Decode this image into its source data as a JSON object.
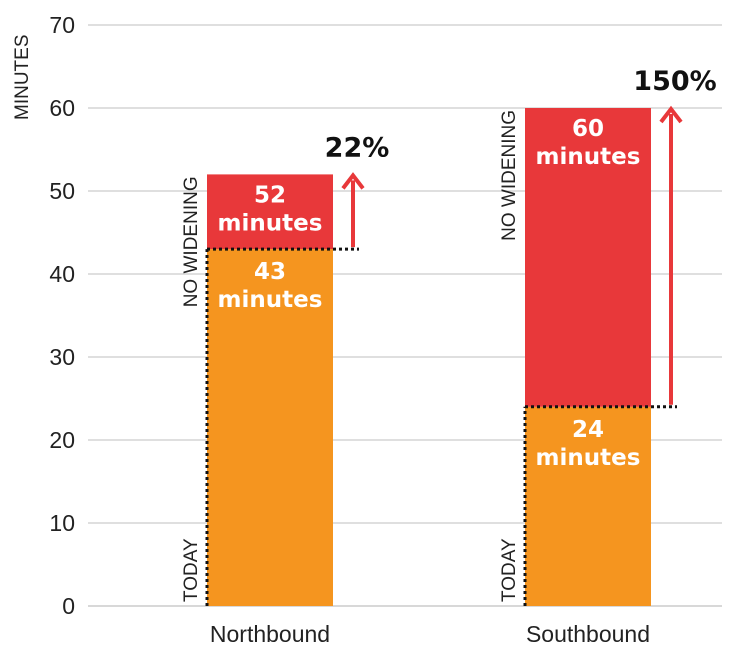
{
  "chart_data": {
    "type": "bar",
    "ylabel": "MINUTES",
    "ylim": [
      0,
      70
    ],
    "yticks": [
      "0",
      "10",
      "20",
      "30",
      "40",
      "50",
      "60",
      "70"
    ],
    "grid": true,
    "categories": [
      "Northbound",
      "Southbound"
    ],
    "bars": [
      {
        "category": "Northbound",
        "today_value": 43,
        "today_label": [
          "43",
          "minutes"
        ],
        "no_widening_value": 52,
        "no_widening_label": [
          "52",
          "minutes"
        ],
        "increase_label": "22%",
        "today_tag": "TODAY",
        "no_widening_tag": "NO WIDENING"
      },
      {
        "category": "Southbound",
        "today_value": 24,
        "today_label": [
          "24",
          "minutes"
        ],
        "no_widening_value": 60,
        "no_widening_label": [
          "60",
          "minutes"
        ],
        "increase_label": "150%",
        "today_tag": "TODAY",
        "no_widening_tag": "NO WIDENING"
      }
    ],
    "colors": {
      "today": "#F5951F",
      "no_widening": "#E8383A",
      "arrow": "#E8383A",
      "grid": "#cccccc",
      "dotted": "#111111"
    }
  }
}
